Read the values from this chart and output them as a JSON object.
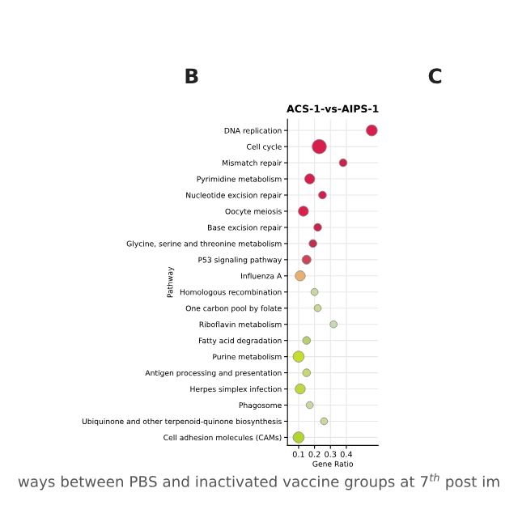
{
  "chart_data": {
    "type": "bubble",
    "title": "ACS-1-vs-AIPS-1",
    "xlabel": "Gene Ratio",
    "ylabel": "Pathway",
    "categories": [
      "DNA replication",
      "Cell cycle",
      "Mismatch repair",
      "Pyrimidine metabolism",
      "Nucleotide excision repair",
      "Oocyte meiosis",
      "Base excision repair",
      "Glycine, serine and threonine metabolism",
      "P53 signaling pathway",
      "Influenza A",
      "Homologous recombination",
      "One carbon pool by folate",
      "Riboflavin metabolism",
      "Fatty acid degradation",
      "Purine metabolism",
      "Antigen processing and presentation",
      "Herpes simplex infection",
      "Phagosome",
      "Ubiquinone and other terpenoid-quinone biosynthesis",
      "Cell adhesion molecules (CAMs)"
    ],
    "orientation": "horizontal",
    "values": [
      0.56,
      0.23,
      0.38,
      0.17,
      0.25,
      0.13,
      0.22,
      0.19,
      0.15,
      0.11,
      0.2,
      0.22,
      0.32,
      0.15,
      0.1,
      0.15,
      0.11,
      0.17,
      0.26,
      0.1
    ],
    "sizes": [
      0.6,
      1,
      0.3,
      0.5,
      0.3,
      0.5,
      0.3,
      0.3,
      0.4,
      0.5,
      0.25,
      0.25,
      0.25,
      0.3,
      0.6,
      0.3,
      0.5,
      0.25,
      0.25,
      0.6
    ],
    "colors": [
      "#d81e4c",
      "#d81e4c",
      "#c8244e",
      "#d61f4e",
      "#d01f4c",
      "#d8204e",
      "#c8244e",
      "#c0304e",
      "#c8485a",
      "#e8b070",
      "#c8d8a0",
      "#c8d890",
      "#c8d8b0",
      "#b8d070",
      "#c8dc30",
      "#c8d870",
      "#c0d840",
      "#c8d8a0",
      "#c8d8a0",
      "#b0d430"
    ],
    "xlim": [
      0.03,
      0.6
    ],
    "xticks": [
      0.1,
      0.2,
      0.3,
      0.4
    ],
    "grid": true,
    "annotations": [
      "B",
      "C",
      "ways between PBS and inactivated vaccine groups at 7$^{th}$ post im"
    ]
  }
}
